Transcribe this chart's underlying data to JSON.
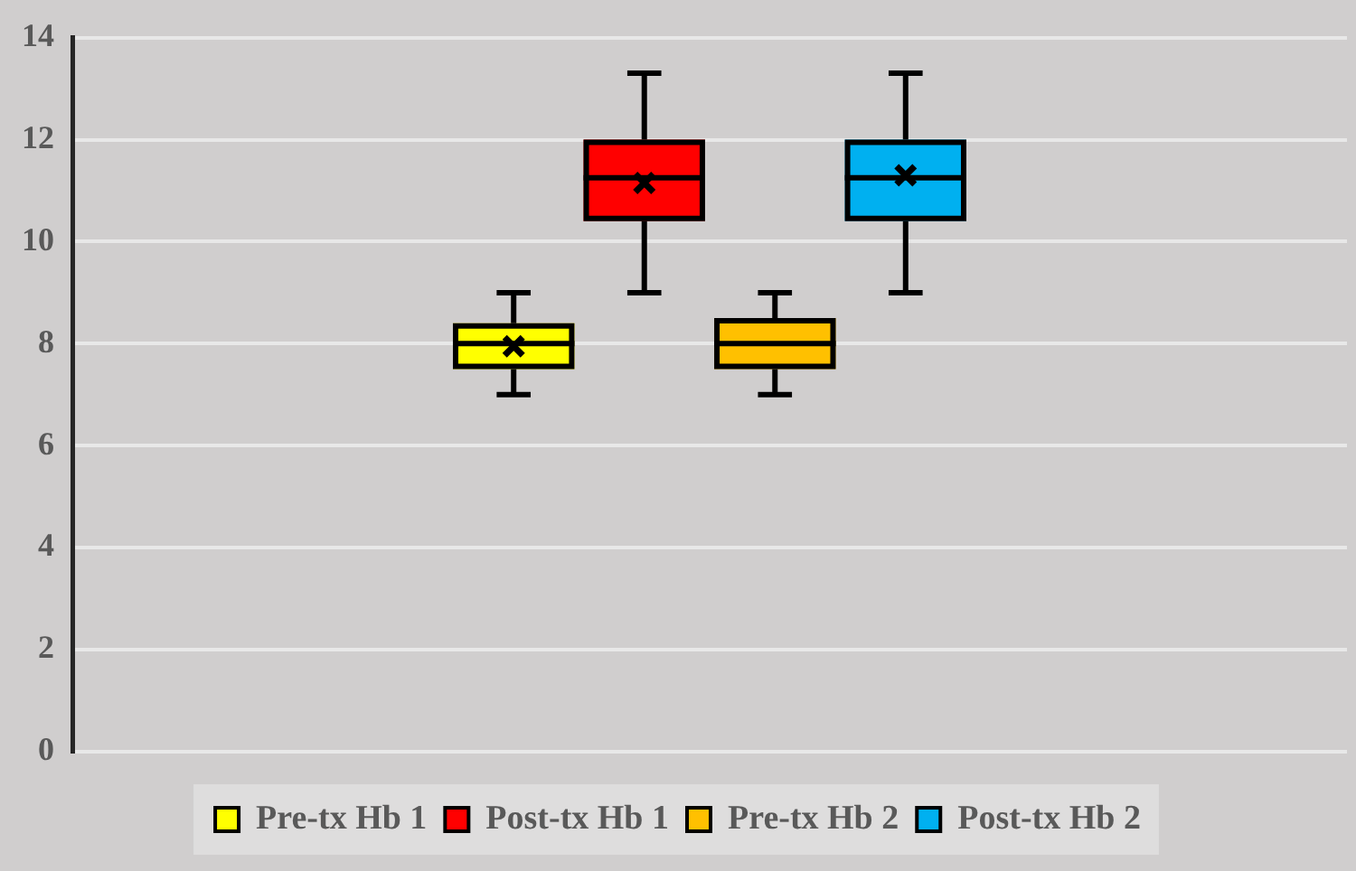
{
  "chart_data": {
    "type": "box",
    "categories": [
      null
    ],
    "series": [
      {
        "name": "Pre-tx Hb 1",
        "color": "#ffff00",
        "boxes": [
          {
            "low": 7,
            "q1": 7.5,
            "median": 8,
            "q3": 8.4,
            "high": 9,
            "mean": 7.95
          }
        ]
      },
      {
        "name": "Post-tx Hb 1",
        "color": "#ff0000",
        "boxes": [
          {
            "low": 9,
            "q1": 10.4,
            "median": 11.25,
            "q3": 12,
            "high": 13.3,
            "mean": 11.15
          }
        ]
      },
      {
        "name": "Pre-tx Hb 2",
        "color": "#ffc000",
        "boxes": [
          {
            "low": 7,
            "q1": 7.5,
            "median": 8,
            "q3": 8.5,
            "high": 9
          }
        ]
      },
      {
        "name": "Post-tx Hb 2",
        "color": "#00b0f0",
        "boxes": [
          {
            "low": 9,
            "q1": 10.4,
            "median": 11.25,
            "q3": 12,
            "high": 13.3,
            "mean": 11.3
          }
        ]
      }
    ],
    "ylim": [
      0,
      14
    ],
    "yticks": [
      0,
      2,
      4,
      6,
      8,
      10,
      12,
      14
    ],
    "grid": "y",
    "legend": "bottom"
  }
}
